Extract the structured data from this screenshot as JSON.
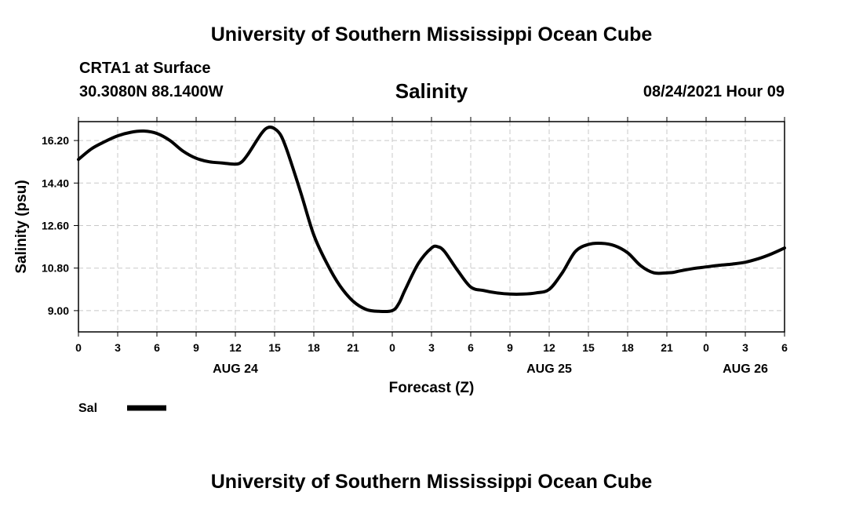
{
  "header": {
    "title": "University of Southern Mississippi Ocean Cube",
    "station": "CRTA1 at Surface",
    "coords": "30.3080N  88.1400W",
    "variable": "Salinity",
    "timestamp": "08/24/2021 Hour 09"
  },
  "footer": {
    "title": "University of Southern Mississippi Ocean Cube"
  },
  "legend": {
    "label": "Sal",
    "color": "#000000"
  },
  "chart_data": {
    "type": "line",
    "title": "Salinity",
    "xlabel": "Forecast (Z)",
    "ylabel": "Salinity (psu)",
    "xlim": [
      0,
      54
    ],
    "ylim": [
      8.1,
      17.0
    ],
    "grid": true,
    "x_ticks": [
      0,
      3,
      6,
      9,
      12,
      15,
      18,
      21,
      24,
      27,
      30,
      33,
      36,
      39,
      42,
      45,
      48,
      51,
      54
    ],
    "x_tick_labels": [
      "0",
      "3",
      "6",
      "9",
      "12",
      "15",
      "18",
      "21",
      "0",
      "3",
      "6",
      "9",
      "12",
      "15",
      "18",
      "21",
      "0",
      "3",
      "6"
    ],
    "y_ticks": [
      9.0,
      10.8,
      12.6,
      14.4,
      16.2
    ],
    "y_tick_labels": [
      "9.00",
      "10.80",
      "12.60",
      "14.40",
      "16.20"
    ],
    "date_labels": [
      {
        "x": 12,
        "label": "AUG 24"
      },
      {
        "x": 36,
        "label": "AUG 25"
      },
      {
        "x": 51,
        "label": "AUG 26"
      }
    ],
    "series": [
      {
        "name": "Sal",
        "color": "#000000",
        "x": [
          0,
          1,
          2,
          3,
          4,
          5,
          6,
          7,
          8,
          9,
          10,
          11,
          12,
          12.5,
          13,
          14,
          14.5,
          15,
          15.5,
          16,
          17,
          18,
          19,
          20,
          21,
          22,
          23,
          24,
          24.5,
          25,
          26,
          27,
          27.5,
          28,
          29,
          30,
          31,
          32,
          33,
          34,
          35,
          36,
          37,
          38,
          39,
          40,
          41,
          42,
          43,
          44,
          45,
          45.5,
          46,
          47,
          48,
          49,
          50,
          51,
          52,
          53,
          54
        ],
        "values": [
          15.4,
          15.85,
          16.15,
          16.4,
          16.55,
          16.6,
          16.5,
          16.2,
          15.75,
          15.45,
          15.3,
          15.25,
          15.2,
          15.3,
          15.65,
          16.5,
          16.75,
          16.7,
          16.4,
          15.7,
          14.0,
          12.2,
          11.0,
          10.05,
          9.4,
          9.05,
          8.97,
          9.0,
          9.3,
          9.9,
          11.0,
          11.65,
          11.7,
          11.5,
          10.7,
          10.0,
          9.85,
          9.75,
          9.7,
          9.7,
          9.75,
          9.9,
          10.6,
          11.5,
          11.8,
          11.85,
          11.75,
          11.45,
          10.9,
          10.6,
          10.6,
          10.62,
          10.68,
          10.78,
          10.85,
          10.92,
          10.97,
          11.05,
          11.2,
          11.4,
          11.65
        ]
      }
    ]
  }
}
